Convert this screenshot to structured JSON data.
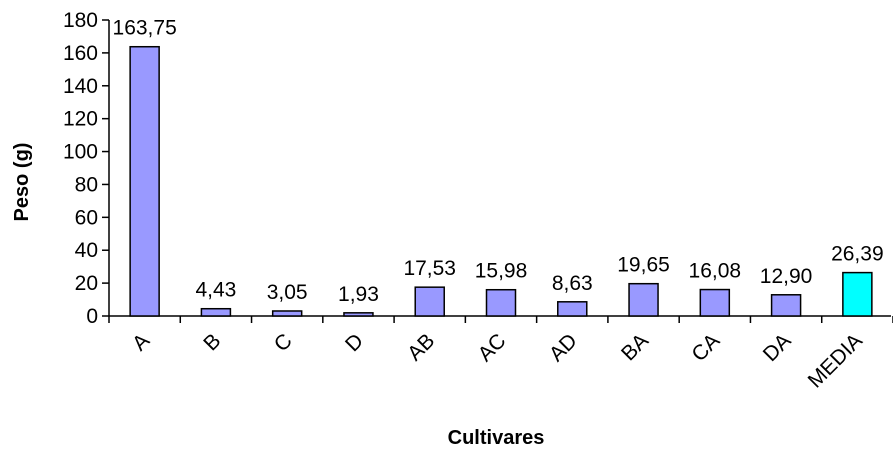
{
  "chart_data": {
    "type": "bar",
    "title": "",
    "xlabel": "Cultivares",
    "ylabel": "Peso (g)",
    "ylim": [
      0,
      180
    ],
    "ytick_step": 20,
    "grid": false,
    "legend": "none",
    "categories": [
      "A",
      "B",
      "C",
      "D",
      "AB",
      "AC",
      "AD",
      "BA",
      "CA",
      "DA",
      "MEDIA"
    ],
    "values": [
      163.75,
      4.43,
      3.05,
      1.93,
      17.53,
      15.98,
      8.63,
      19.65,
      16.08,
      12.9,
      26.39
    ],
    "data_labels": [
      "163,75",
      "4,43",
      "3,05",
      "1,93",
      "17,53",
      "15,98",
      "8,63",
      "19,65",
      "16,08",
      "12,90",
      "26,39"
    ],
    "bar_color": "#9999ff",
    "highlight_color": "#00ffff",
    "highlight_category": "MEDIA",
    "bar_stroke": "#000000"
  }
}
